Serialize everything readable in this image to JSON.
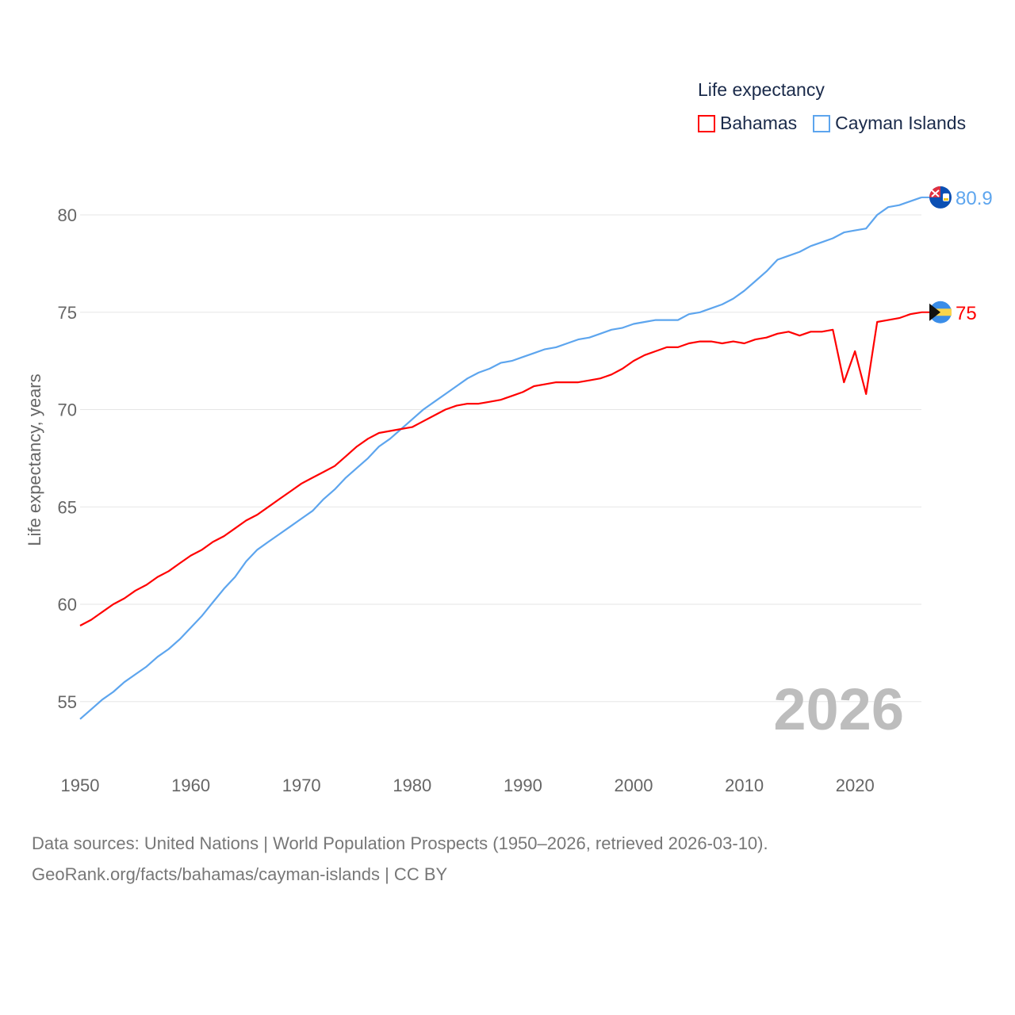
{
  "chart_data": {
    "type": "line",
    "title": "",
    "legend_title": "Life expectancy",
    "legend_position": "top-right",
    "xlabel": "",
    "ylabel": "Life expectancy, years",
    "xlim": [
      1950,
      2026
    ],
    "ylim": [
      53,
      82.5
    ],
    "x_ticks": [
      "1950",
      "1960",
      "1970",
      "1980",
      "1990",
      "2000",
      "2010",
      "2020"
    ],
    "y_ticks": [
      "55",
      "60",
      "65",
      "70",
      "75",
      "80"
    ],
    "grid": true,
    "watermark_year": "2026",
    "x": [
      1950,
      1951,
      1952,
      1953,
      1954,
      1955,
      1956,
      1957,
      1958,
      1959,
      1960,
      1961,
      1962,
      1963,
      1964,
      1965,
      1966,
      1967,
      1968,
      1969,
      1970,
      1971,
      1972,
      1973,
      1974,
      1975,
      1976,
      1977,
      1978,
      1979,
      1980,
      1981,
      1982,
      1983,
      1984,
      1985,
      1986,
      1987,
      1988,
      1989,
      1990,
      1991,
      1992,
      1993,
      1994,
      1995,
      1996,
      1997,
      1998,
      1999,
      2000,
      2001,
      2002,
      2003,
      2004,
      2005,
      2006,
      2007,
      2008,
      2009,
      2010,
      2011,
      2012,
      2013,
      2014,
      2015,
      2016,
      2017,
      2018,
      2019,
      2020,
      2021,
      2022,
      2023,
      2024,
      2025,
      2026
    ],
    "series": [
      {
        "name": "Bahamas",
        "color": "#ff0000",
        "end_label": "75",
        "flag": "bahamas-flag",
        "values": [
          58.9,
          59.2,
          59.6,
          60.0,
          60.3,
          60.7,
          61.0,
          61.4,
          61.7,
          62.1,
          62.5,
          62.8,
          63.2,
          63.5,
          63.9,
          64.3,
          64.6,
          65.0,
          65.4,
          65.8,
          66.2,
          66.5,
          66.8,
          67.1,
          67.6,
          68.1,
          68.5,
          68.8,
          68.9,
          69.0,
          69.1,
          69.4,
          69.7,
          70.0,
          70.2,
          70.3,
          70.3,
          70.4,
          70.5,
          70.7,
          70.9,
          71.2,
          71.3,
          71.4,
          71.4,
          71.4,
          71.5,
          71.6,
          71.8,
          72.1,
          72.5,
          72.8,
          73.0,
          73.2,
          73.2,
          73.4,
          73.5,
          73.5,
          73.4,
          73.5,
          73.4,
          73.6,
          73.7,
          73.9,
          74.0,
          73.8,
          74.0,
          74.0,
          74.1,
          71.4,
          73.0,
          70.8,
          74.5,
          74.6,
          74.7,
          74.9,
          75.0
        ]
      },
      {
        "name": "Cayman Islands",
        "color": "#5da5ee",
        "end_label": "80.9",
        "flag": "cayman-islands-flag",
        "values": [
          54.1,
          54.6,
          55.1,
          55.5,
          56.0,
          56.4,
          56.8,
          57.3,
          57.7,
          58.2,
          58.8,
          59.4,
          60.1,
          60.8,
          61.4,
          62.2,
          62.8,
          63.2,
          63.6,
          64.0,
          64.4,
          64.8,
          65.4,
          65.9,
          66.5,
          67.0,
          67.5,
          68.1,
          68.5,
          69.0,
          69.5,
          70.0,
          70.4,
          70.8,
          71.2,
          71.6,
          71.9,
          72.1,
          72.4,
          72.5,
          72.7,
          72.9,
          73.1,
          73.2,
          73.4,
          73.6,
          73.7,
          73.9,
          74.1,
          74.2,
          74.4,
          74.5,
          74.6,
          74.6,
          74.6,
          74.9,
          75.0,
          75.2,
          75.4,
          75.7,
          76.1,
          76.6,
          77.1,
          77.7,
          77.9,
          78.1,
          78.4,
          78.6,
          78.8,
          79.1,
          79.2,
          79.3,
          80.0,
          80.4,
          80.5,
          80.7,
          80.9
        ]
      }
    ]
  },
  "source": {
    "line1": "Data sources: United Nations | World Population Prospects (1950–2026, retrieved 2026-03-10).",
    "line2": "GeoRank.org/facts/bahamas/cayman-islands | CC BY"
  }
}
